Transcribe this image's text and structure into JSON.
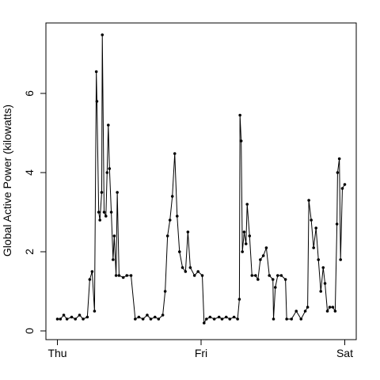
{
  "chart_data": {
    "type": "line",
    "y_label": "Global Active Power (kilowatts)",
    "color": "#000000",
    "markers": true,
    "xlim": [
      -1.92,
      49.92
    ],
    "xticks": [
      {
        "value": 0,
        "label": "Thu"
      },
      {
        "value": 24,
        "label": "Fri"
      },
      {
        "value": 48,
        "label": "Sat"
      }
    ],
    "ylim": [
      -0.22,
      7.78
    ],
    "yticks": [
      0,
      2,
      4,
      6
    ],
    "x": [
      0,
      0.5,
      1.06,
      1.6,
      2.38,
      3,
      3.7,
      4.3,
      5.0,
      5.4,
      5.8,
      6.2,
      6.5,
      6.6,
      6.9,
      7.1,
      7.4,
      7.5,
      7.8,
      8.1,
      8.3,
      8.5,
      8.7,
      9.0,
      9.3,
      9.5,
      9.8,
      10.0,
      10.3,
      11.0,
      11.6,
      12.3,
      13.0,
      13.6,
      14.3,
      15.0,
      15.6,
      16.3,
      16.9,
      17.6,
      18.0,
      18.4,
      18.8,
      19.2,
      19.6,
      20.0,
      20.4,
      20.9,
      21.4,
      21.8,
      22.2,
      22.9,
      23.5,
      24.2,
      24.5,
      24.9,
      25.5,
      26.2,
      27.0,
      27.5,
      28.2,
      28.8,
      29.5,
      30.1,
      30.4,
      30.5,
      30.7,
      30.9,
      31.2,
      31.5,
      31.7,
      32.1,
      32.5,
      33.1,
      33.5,
      33.9,
      34.4,
      34.9,
      35.4,
      36.0,
      36.1,
      36.4,
      36.8,
      37.4,
      38.1,
      38.3,
      39.1,
      39.9,
      40.7,
      41.4,
      41.8,
      42.0,
      42.4,
      42.8,
      43.2,
      43.6,
      44.0,
      44.4,
      44.7,
      45.1,
      45.5,
      46.0,
      46.4,
      46.7,
      46.8,
      47.1,
      47.3,
      47.6,
      48.0
    ],
    "values": [
      0.3,
      0.3,
      0.4,
      0.3,
      0.35,
      0.3,
      0.4,
      0.3,
      0.35,
      1.3,
      1.5,
      0.5,
      6.55,
      5.8,
      3.0,
      2.8,
      3.5,
      7.48,
      3.0,
      2.9,
      4.0,
      5.2,
      4.1,
      3.0,
      1.8,
      2.4,
      1.4,
      3.5,
      1.4,
      1.35,
      1.4,
      1.4,
      0.3,
      0.35,
      0.3,
      0.4,
      0.3,
      0.35,
      0.3,
      0.4,
      1.0,
      2.4,
      2.8,
      3.4,
      4.48,
      2.9,
      2.0,
      1.6,
      1.5,
      2.5,
      1.6,
      1.4,
      1.5,
      1.4,
      0.2,
      0.3,
      0.35,
      0.3,
      0.35,
      0.3,
      0.35,
      0.3,
      0.35,
      0.3,
      0.8,
      5.45,
      4.8,
      2.0,
      2.5,
      2.2,
      3.2,
      2.4,
      1.4,
      1.4,
      1.3,
      1.8,
      1.9,
      2.1,
      1.4,
      1.3,
      0.3,
      1.1,
      1.4,
      1.4,
      1.3,
      0.3,
      0.3,
      0.5,
      0.3,
      0.5,
      0.6,
      3.3,
      2.8,
      2.1,
      2.6,
      1.8,
      1.0,
      1.6,
      1.2,
      0.5,
      0.6,
      0.6,
      0.5,
      2.7,
      4.0,
      4.35,
      1.8,
      3.6,
      3.7
    ]
  }
}
